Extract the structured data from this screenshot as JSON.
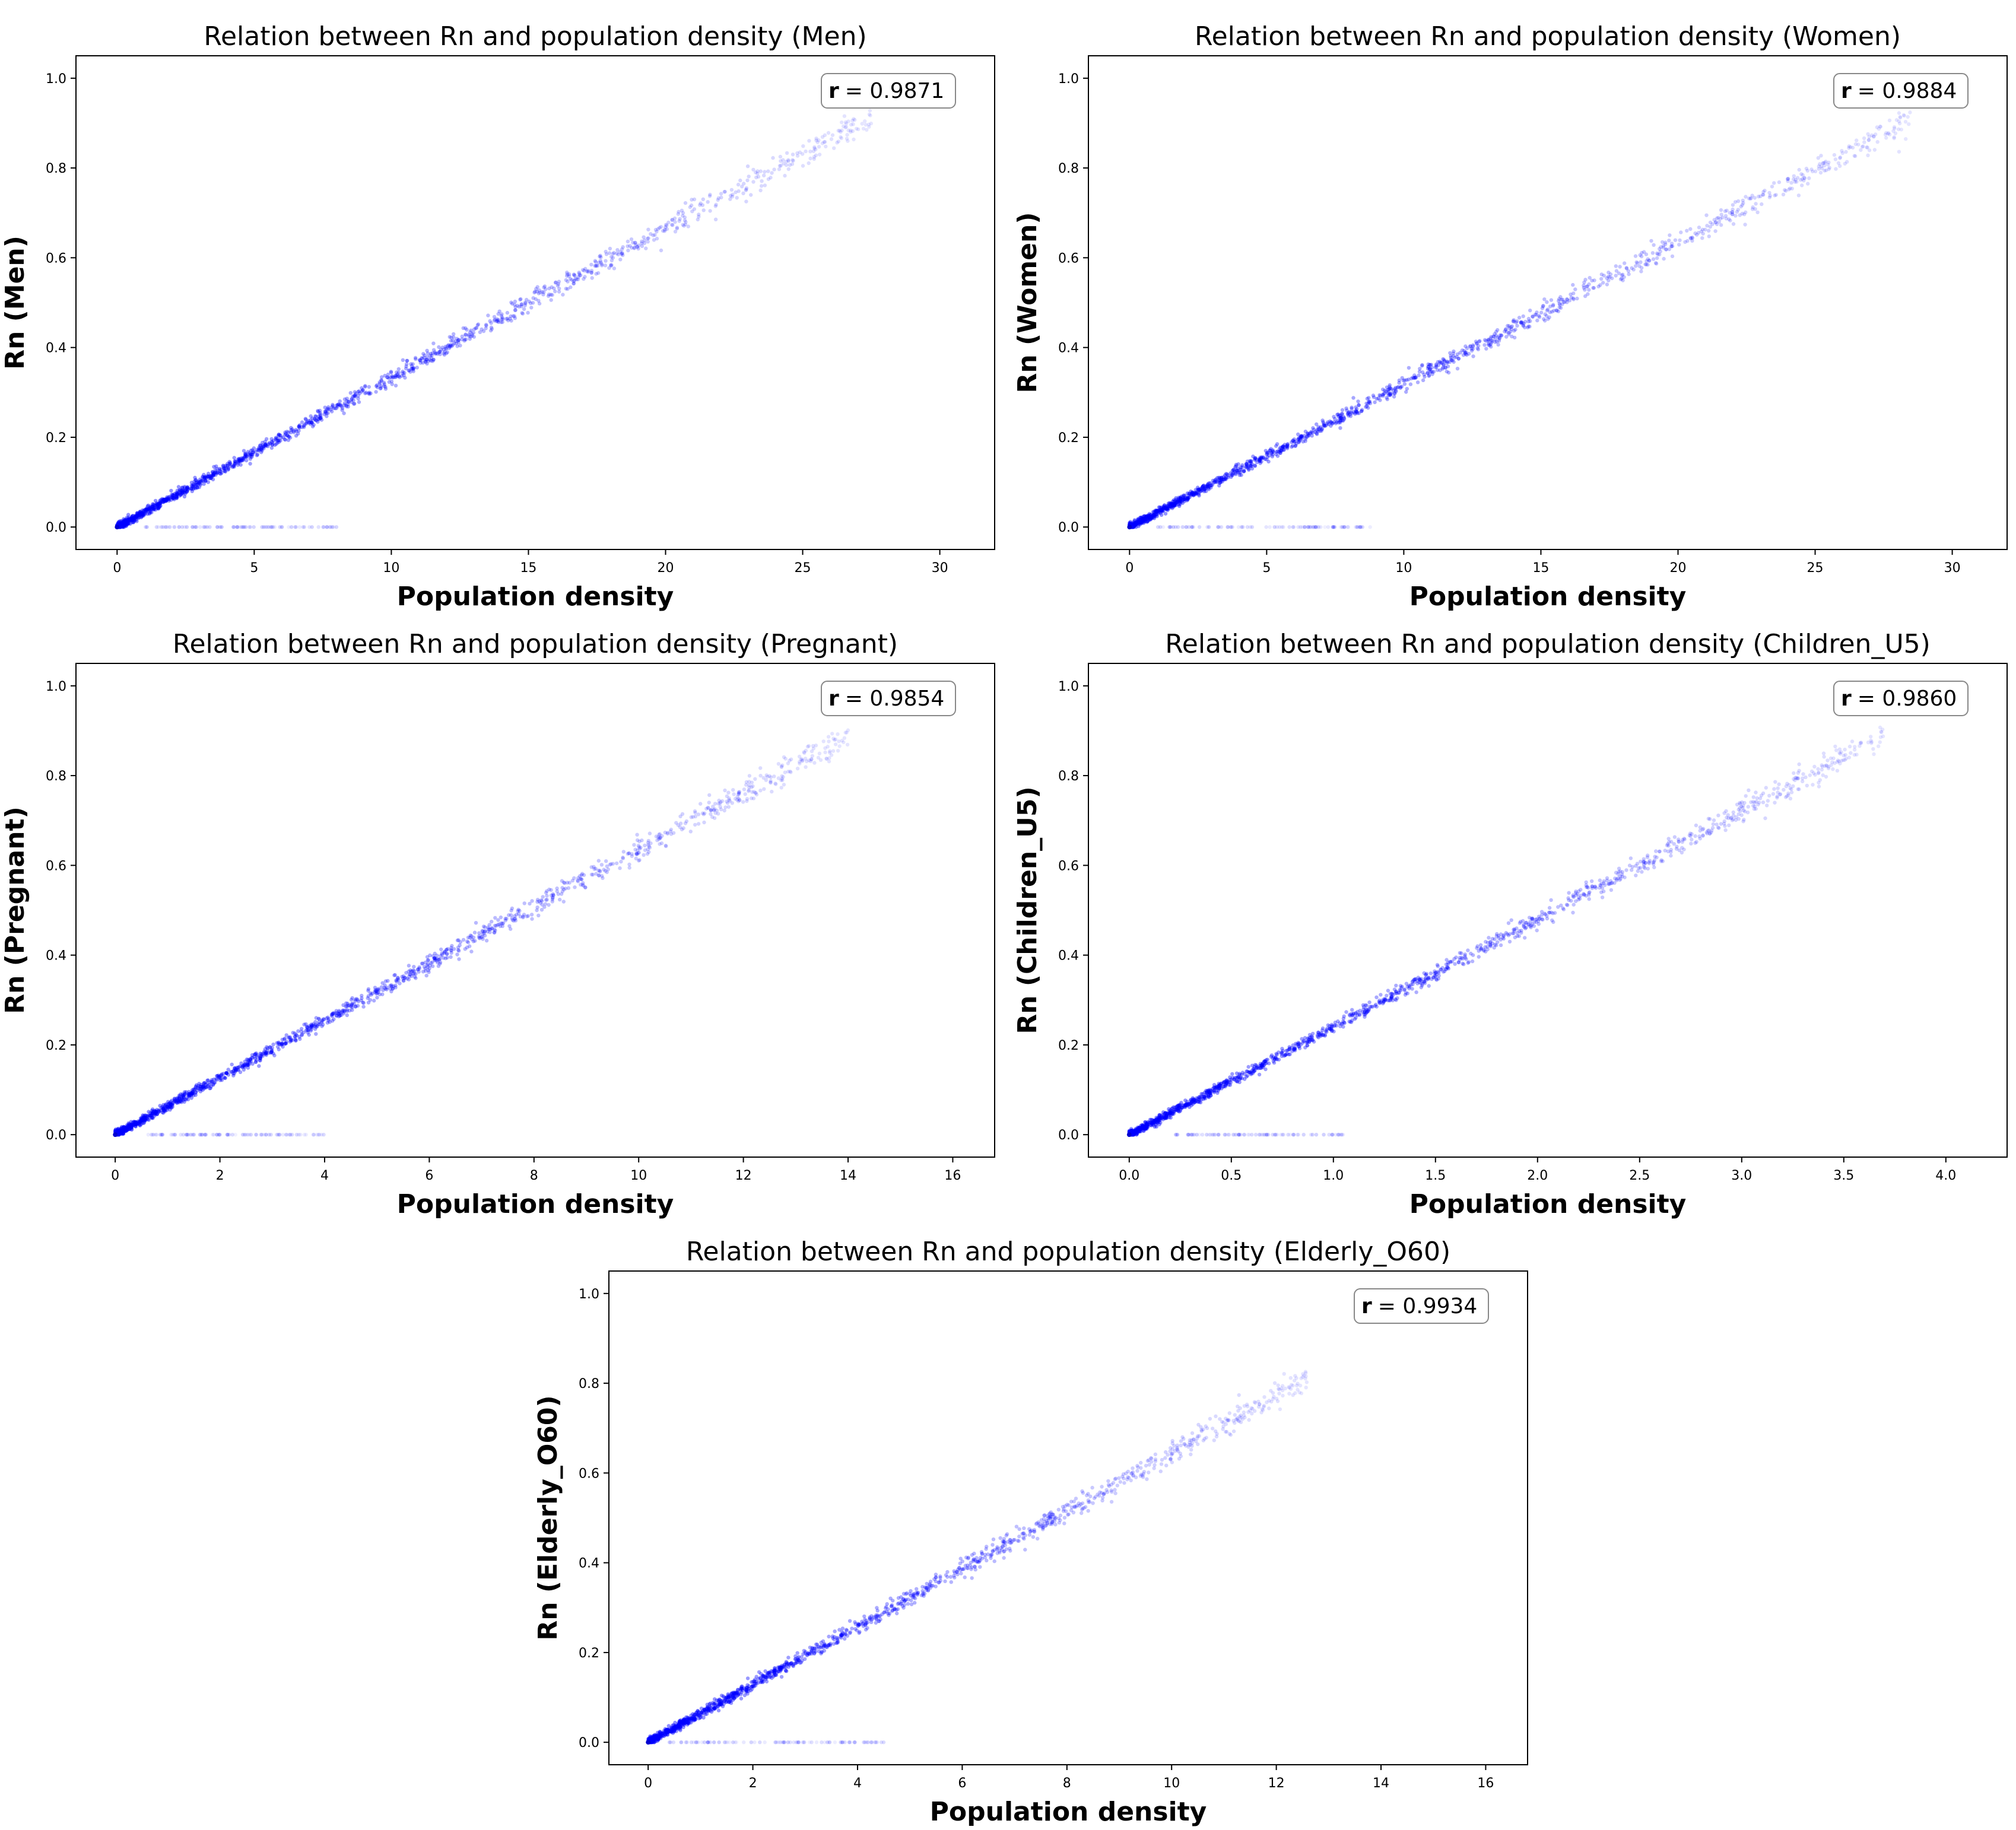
{
  "chart_data": [
    {
      "type": "scatter",
      "group": "Men",
      "title": "Relation between Rn and population density (Men)",
      "xlabel": "Population density",
      "ylabel": "Rn (Men)",
      "xlim": [
        -1.5,
        32
      ],
      "ylim": [
        -0.05,
        1.05
      ],
      "xticks": [
        0,
        5,
        10,
        15,
        20,
        25,
        30
      ],
      "xtick_labels": [
        "0",
        "5",
        "10",
        "15",
        "20",
        "25",
        "30"
      ],
      "yticks": [
        0.0,
        0.2,
        0.4,
        0.6,
        0.8,
        1.0
      ],
      "ytick_labels": [
        "0.0",
        "0.2",
        "0.4",
        "0.6",
        "0.8",
        "1.0"
      ],
      "annotation": {
        "label": "r",
        "value": "= 0.9871",
        "location": "top-right"
      },
      "trend": {
        "slope": 0.0333,
        "x_end": 27.5,
        "zero_cluster_x": [
          1.0,
          8.0
        ]
      },
      "color": "#0000ff"
    },
    {
      "type": "scatter",
      "group": "Women",
      "title": "Relation between Rn and population density (Women)",
      "xlabel": "Population density",
      "ylabel": "Rn (Women)",
      "xlim": [
        -1.5,
        32
      ],
      "ylim": [
        -0.05,
        1.05
      ],
      "xticks": [
        0,
        5,
        10,
        15,
        20,
        25,
        30
      ],
      "xtick_labels": [
        "0",
        "5",
        "10",
        "15",
        "20",
        "25",
        "30"
      ],
      "yticks": [
        0.0,
        0.2,
        0.4,
        0.6,
        0.8,
        1.0
      ],
      "ytick_labels": [
        "0.0",
        "0.2",
        "0.4",
        "0.6",
        "0.8",
        "1.0"
      ],
      "annotation": {
        "label": "r",
        "value": "= 0.9884",
        "location": "top-right"
      },
      "trend": {
        "slope": 0.0318,
        "x_end": 28.5,
        "zero_cluster_x": [
          1.0,
          8.8
        ]
      },
      "color": "#0000ff"
    },
    {
      "type": "scatter",
      "group": "Pregnant",
      "title": "Relation between Rn and population density (Pregnant)",
      "xlabel": "Population density",
      "ylabel": "Rn (Pregnant)",
      "xlim": [
        -0.75,
        16.8
      ],
      "ylim": [
        -0.05,
        1.05
      ],
      "xticks": [
        0,
        2,
        4,
        6,
        8,
        10,
        12,
        14,
        16
      ],
      "xtick_labels": [
        "0",
        "2",
        "4",
        "6",
        "8",
        "10",
        "12",
        "14",
        "16"
      ],
      "yticks": [
        0.0,
        0.2,
        0.4,
        0.6,
        0.8,
        1.0
      ],
      "ytick_labels": [
        "0.0",
        "0.2",
        "0.4",
        "0.6",
        "0.8",
        "1.0"
      ],
      "annotation": {
        "label": "r",
        "value": "= 0.9854",
        "location": "top-right"
      },
      "trend": {
        "slope": 0.0635,
        "x_end": 14.0,
        "zero_cluster_x": [
          0.6,
          4.1
        ]
      },
      "color": "#0000ff"
    },
    {
      "type": "scatter",
      "group": "Children_U5",
      "title": "Relation between Rn and population density (Children_U5)",
      "xlabel": "Population density",
      "ylabel": "Rn (Children_U5)",
      "xlim": [
        -0.2,
        4.3
      ],
      "ylim": [
        -0.05,
        1.05
      ],
      "xticks": [
        0.0,
        0.5,
        1.0,
        1.5,
        2.0,
        2.5,
        3.0,
        3.5,
        4.0
      ],
      "xtick_labels": [
        "0.0",
        "0.5",
        "1.0",
        "1.5",
        "2.0",
        "2.5",
        "3.0",
        "3.5",
        "4.0"
      ],
      "yticks": [
        0.0,
        0.2,
        0.4,
        0.6,
        0.8,
        1.0
      ],
      "ytick_labels": [
        "0.0",
        "0.2",
        "0.4",
        "0.6",
        "0.8",
        "1.0"
      ],
      "annotation": {
        "label": "r",
        "value": "= 0.9860",
        "location": "top-right"
      },
      "trend": {
        "slope": 0.24,
        "x_end": 3.7,
        "zero_cluster_x": [
          0.15,
          1.05
        ]
      },
      "color": "#0000ff"
    },
    {
      "type": "scatter",
      "group": "Elderly_O60",
      "title": "Relation between Rn and population density (Elderly_O60)",
      "xlabel": "Population density",
      "ylabel": "Rn (Elderly_O60)",
      "xlim": [
        -0.75,
        16.8
      ],
      "ylim": [
        -0.05,
        1.05
      ],
      "xticks": [
        0,
        2,
        4,
        6,
        8,
        10,
        12,
        14,
        16
      ],
      "xtick_labels": [
        "0",
        "2",
        "4",
        "6",
        "8",
        "10",
        "12",
        "14",
        "16"
      ],
      "yticks": [
        0.0,
        0.2,
        0.4,
        0.6,
        0.8,
        1.0
      ],
      "ytick_labels": [
        "0.0",
        "0.2",
        "0.4",
        "0.6",
        "0.8",
        "1.0"
      ],
      "annotation": {
        "label": "r",
        "value": "= 0.9934",
        "location": "top-right"
      },
      "trend": {
        "slope": 0.0645,
        "x_end": 12.6,
        "zero_cluster_x": [
          0.4,
          4.6
        ]
      },
      "color": "#0000ff"
    }
  ]
}
